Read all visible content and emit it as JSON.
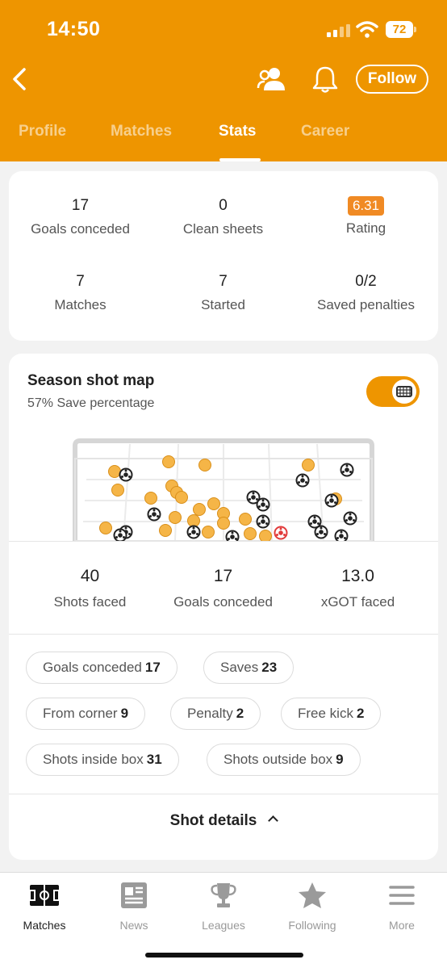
{
  "status_bar": {
    "time": "14:50",
    "battery": "72"
  },
  "header": {
    "follow_label": "Follow",
    "tabs": [
      {
        "label": "Profile"
      },
      {
        "label": "Matches"
      },
      {
        "label": "Stats"
      },
      {
        "label": "Career"
      }
    ],
    "active_tab": "Stats"
  },
  "stats": [
    {
      "value": "17",
      "label": "Goals conceded"
    },
    {
      "value": "0",
      "label": "Clean sheets"
    },
    {
      "value": "6.31",
      "label": "Rating"
    },
    {
      "value": "7",
      "label": "Matches"
    },
    {
      "value": "7",
      "label": "Started"
    },
    {
      "value": "0/2",
      "label": "Saved penalties"
    }
  ],
  "shot_map": {
    "title": "Season shot map",
    "subtitle": "57% Save percentage",
    "toggle_on": true,
    "colors": {
      "save": "#f5b547",
      "goal": "#222222",
      "penalty_goal": "#e23b3b",
      "accent": "#ee9500"
    },
    "summary": [
      {
        "value": "40",
        "label": "Shots faced"
      },
      {
        "value": "17",
        "label": "Goals conceded"
      },
      {
        "value": "13.0",
        "label": "xGOT faced"
      }
    ],
    "chips": [
      {
        "label": "Goals conceded",
        "value": "17"
      },
      {
        "label": "Saves",
        "value": "23"
      },
      {
        "label": "From corner",
        "value": "9"
      },
      {
        "label": "Penalty",
        "value": "2"
      },
      {
        "label": "Free kick",
        "value": "2"
      },
      {
        "label": "Shots inside box",
        "value": "31"
      },
      {
        "label": "Shots outside box",
        "value": "9"
      }
    ],
    "details_label": "Shot details"
  },
  "bottom_nav": [
    {
      "label": "Matches",
      "icon": "pitch-icon",
      "active": true
    },
    {
      "label": "News",
      "icon": "newspaper-icon",
      "active": false
    },
    {
      "label": "Leagues",
      "icon": "trophy-icon",
      "active": false
    },
    {
      "label": "Following",
      "icon": "star-icon",
      "active": false
    },
    {
      "label": "More",
      "icon": "menu-icon",
      "active": false
    }
  ]
}
